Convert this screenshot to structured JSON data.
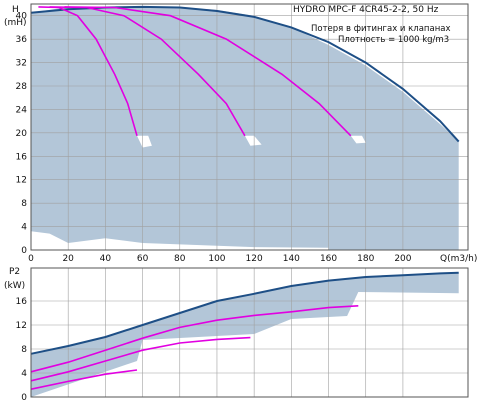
{
  "header": {
    "title": "HYDRO MPC-F 4CR45-2-2, 50 Hz",
    "note1": "Потеря в фитингах и клапанах",
    "note2": "Плотность = 1000 kg/m3"
  },
  "chart_data": [
    {
      "type": "line",
      "ylabel": "H",
      "yunit": "(mH)",
      "xlabel": "Q(m3/h)",
      "xlim": [
        0,
        235
      ],
      "ylim": [
        0,
        42
      ],
      "xticks": [
        0,
        20,
        40,
        60,
        80,
        100,
        120,
        140,
        160,
        180,
        200
      ],
      "yticks": [
        0,
        4,
        8,
        12,
        16,
        20,
        24,
        28,
        32,
        36,
        40
      ],
      "grid": true,
      "operating_area": [
        [
          0,
          40.5
        ],
        [
          10,
          41
        ],
        [
          20,
          41.5
        ],
        [
          40,
          41.5
        ],
        [
          60,
          41.5
        ],
        [
          80,
          41.4
        ],
        [
          100,
          41
        ],
        [
          120,
          40
        ],
        [
          140,
          38
        ],
        [
          160,
          35
        ],
        [
          180,
          31.5
        ],
        [
          200,
          27
        ],
        [
          220,
          21.5
        ],
        [
          230,
          18.5
        ],
        [
          230,
          0
        ],
        [
          160,
          0
        ],
        [
          160,
          0.4
        ],
        [
          120,
          0.5
        ],
        [
          60,
          1.2
        ],
        [
          40,
          2
        ],
        [
          20,
          1.2
        ],
        [
          10,
          2.8
        ],
        [
          0,
          3.2
        ]
      ],
      "area_notches": [
        [
          [
            57,
            19.5
          ],
          [
            60,
            17.5
          ],
          [
            65,
            17.8
          ],
          [
            63,
            19.5
          ]
        ],
        [
          [
            115,
            19.5
          ],
          [
            118,
            17.8
          ],
          [
            124,
            18
          ],
          [
            120,
            19.5
          ]
        ],
        [
          [
            172,
            19.5
          ],
          [
            175,
            18.2
          ],
          [
            180,
            18.3
          ],
          [
            178,
            19.5
          ]
        ]
      ],
      "series": [
        {
          "style": "max",
          "points": [
            [
              0,
              40.5
            ],
            [
              20,
              41.1
            ],
            [
              40,
              41.4
            ],
            [
              60,
              41.5
            ],
            [
              80,
              41.4
            ],
            [
              100,
              40.8
            ],
            [
              120,
              39.8
            ],
            [
              140,
              38
            ],
            [
              160,
              35.5
            ],
            [
              180,
              32
            ],
            [
              200,
              27.5
            ],
            [
              220,
              22
            ],
            [
              230,
              18.5
            ]
          ]
        },
        {
          "style": "stage",
          "points": [
            [
              4,
              41.5
            ],
            [
              15,
              41.4
            ],
            [
              25,
              40
            ],
            [
              35,
              36
            ],
            [
              45,
              30
            ],
            [
              52,
              25
            ],
            [
              57,
              19.5
            ]
          ]
        },
        {
          "style": "stage",
          "points": [
            [
              10,
              41.5
            ],
            [
              30,
              41.4
            ],
            [
              50,
              40
            ],
            [
              70,
              36
            ],
            [
              90,
              30
            ],
            [
              105,
              25
            ],
            [
              115,
              19.5
            ]
          ]
        },
        {
          "style": "stage",
          "points": [
            [
              18,
              41.5
            ],
            [
              45,
              41.4
            ],
            [
              75,
              40
            ],
            [
              105,
              36
            ],
            [
              135,
              30
            ],
            [
              155,
              25
            ],
            [
              172,
              19.5
            ]
          ]
        }
      ]
    },
    {
      "type": "line",
      "ylabel": "P2",
      "yunit": "(kW)",
      "xlim": [
        0,
        235
      ],
      "ylim": [
        0,
        21.5
      ],
      "xticks": [
        0,
        20,
        40,
        60,
        80,
        100,
        120,
        140,
        160,
        180,
        200
      ],
      "yticks": [
        0,
        4,
        8,
        12,
        16
      ],
      "grid": true,
      "operating_area": [
        [
          0,
          7.2
        ],
        [
          20,
          8.5
        ],
        [
          40,
          10
        ],
        [
          60,
          12
        ],
        [
          80,
          14
        ],
        [
          100,
          16
        ],
        [
          120,
          17.2
        ],
        [
          140,
          18.5
        ],
        [
          160,
          19.4
        ],
        [
          180,
          20
        ],
        [
          200,
          20.3
        ],
        [
          220,
          20.6
        ],
        [
          230,
          20.7
        ],
        [
          230,
          17.3
        ],
        [
          176,
          17.5
        ],
        [
          170,
          13.5
        ],
        [
          140,
          13
        ],
        [
          120,
          10.5
        ],
        [
          60,
          9.5
        ],
        [
          57,
          6
        ],
        [
          0,
          0
        ]
      ],
      "series": [
        {
          "style": "max",
          "points": [
            [
              0,
              7.2
            ],
            [
              20,
              8.5
            ],
            [
              40,
              10
            ],
            [
              60,
              12
            ],
            [
              80,
              14
            ],
            [
              100,
              16
            ],
            [
              120,
              17.2
            ],
            [
              140,
              18.5
            ],
            [
              160,
              19.4
            ],
            [
              180,
              20
            ],
            [
              200,
              20.3
            ],
            [
              220,
              20.6
            ],
            [
              230,
              20.7
            ]
          ]
        },
        {
          "style": "stage",
          "points": [
            [
              0,
              4.2
            ],
            [
              20,
              5.8
            ],
            [
              40,
              7.8
            ],
            [
              60,
              9.8
            ],
            [
              80,
              11.6
            ],
            [
              100,
              12.8
            ],
            [
              120,
              13.6
            ],
            [
              140,
              14.2
            ],
            [
              160,
              14.9
            ],
            [
              176,
              15.2
            ]
          ]
        },
        {
          "style": "stage",
          "points": [
            [
              0,
              2.7
            ],
            [
              20,
              4.2
            ],
            [
              40,
              6
            ],
            [
              60,
              7.8
            ],
            [
              80,
              9
            ],
            [
              100,
              9.6
            ],
            [
              118,
              9.9
            ]
          ]
        },
        {
          "style": "stage",
          "points": [
            [
              0,
              1.3
            ],
            [
              20,
              2.6
            ],
            [
              40,
              3.8
            ],
            [
              57,
              4.5
            ]
          ]
        }
      ]
    }
  ]
}
